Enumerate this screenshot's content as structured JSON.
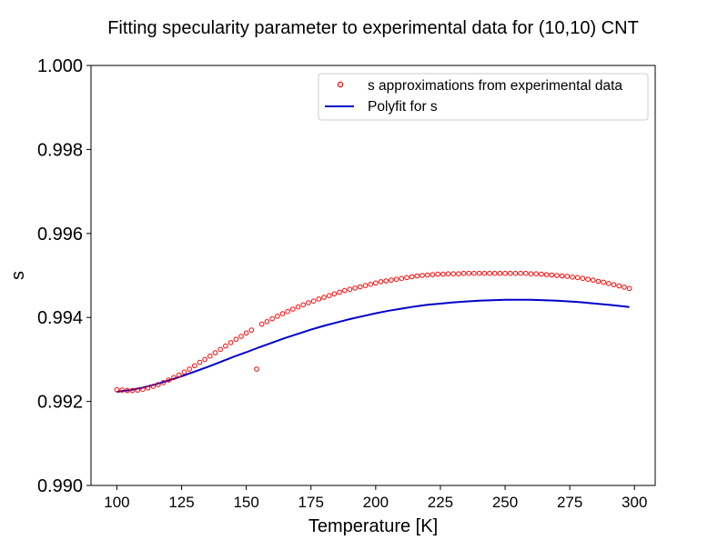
{
  "chart_data": {
    "type": "scatter",
    "title": "Fitting specularity parameter to experimental data for (10,10) CNT",
    "xlabel": "Temperature [K]",
    "ylabel": "s",
    "xlim": [
      90,
      308
    ],
    "ylim": [
      0.99,
      1.0
    ],
    "x_ticks": [
      100,
      125,
      150,
      175,
      200,
      225,
      250,
      275,
      300
    ],
    "x_tick_labels": [
      "100",
      "125",
      "150",
      "175",
      "200",
      "225",
      "250",
      "275",
      "300"
    ],
    "y_ticks": [
      0.99,
      0.992,
      0.994,
      0.996,
      0.998,
      1.0
    ],
    "y_tick_labels": [
      "0.990",
      "0.992",
      "0.994",
      "0.996",
      "0.998",
      "1.000"
    ],
    "grid": false,
    "legend_position": "top-right",
    "series": [
      {
        "name": "s approximations from experimental data",
        "kind": "scatter",
        "marker": "open-circle",
        "color": "#ff0000",
        "x": [
          100,
          102,
          104,
          106,
          108,
          110,
          112,
          114,
          116,
          118,
          120,
          122,
          124,
          126,
          128,
          130,
          132,
          134,
          136,
          138,
          140,
          142,
          144,
          146,
          148,
          150,
          152,
          154,
          156,
          158,
          160,
          162,
          164,
          166,
          168,
          170,
          172,
          174,
          176,
          178,
          180,
          182,
          184,
          186,
          188,
          190,
          192,
          194,
          196,
          198,
          200,
          202,
          204,
          206,
          208,
          210,
          212,
          214,
          216,
          218,
          220,
          222,
          224,
          226,
          228,
          230,
          232,
          234,
          236,
          238,
          240,
          242,
          244,
          246,
          248,
          250,
          252,
          254,
          256,
          258,
          260,
          262,
          264,
          266,
          268,
          270,
          272,
          274,
          276,
          278,
          280,
          282,
          284,
          286,
          288,
          290,
          292,
          294,
          296,
          298
        ],
        "y": [
          0.99228,
          0.99227,
          0.99226,
          0.99226,
          0.99227,
          0.99229,
          0.99232,
          0.99236,
          0.9924,
          0.99245,
          0.99251,
          0.99257,
          0.99263,
          0.9927,
          0.99277,
          0.99285,
          0.99293,
          0.993,
          0.99308,
          0.99316,
          0.99324,
          0.99332,
          0.9934,
          0.99348,
          0.99355,
          0.99363,
          0.9937,
          0.99277,
          0.99384,
          0.9939,
          0.99397,
          0.99403,
          0.99409,
          0.99414,
          0.9942,
          0.99425,
          0.9943,
          0.99435,
          0.99439,
          0.99444,
          0.99448,
          0.99452,
          0.99456,
          0.9946,
          0.99464,
          0.99467,
          0.9947,
          0.99473,
          0.99476,
          0.99479,
          0.99482,
          0.99485,
          0.99487,
          0.99489,
          0.99491,
          0.99493,
          0.99495,
          0.99497,
          0.99499,
          0.995,
          0.99501,
          0.99502,
          0.99503,
          0.99503,
          0.99504,
          0.99504,
          0.99504,
          0.99505,
          0.99505,
          0.99505,
          0.99505,
          0.99505,
          0.99505,
          0.99505,
          0.99505,
          0.99505,
          0.99505,
          0.99505,
          0.99505,
          0.99505,
          0.99504,
          0.99504,
          0.99503,
          0.99502,
          0.99501,
          0.995,
          0.99499,
          0.99498,
          0.99496,
          0.99495,
          0.99493,
          0.99491,
          0.99489,
          0.99486,
          0.99484,
          0.99481,
          0.99478,
          0.99475,
          0.99472,
          0.99469
        ]
      },
      {
        "name": "Polyfit for s",
        "kind": "line",
        "color": "#0000cc",
        "x": [
          100,
          105,
          110,
          115,
          120,
          125,
          130,
          135,
          140,
          145,
          150,
          155,
          160,
          165,
          170,
          175,
          180,
          185,
          190,
          195,
          200,
          205,
          210,
          215,
          220,
          225,
          230,
          235,
          240,
          245,
          250,
          255,
          260,
          265,
          270,
          275,
          280,
          285,
          290,
          295,
          298
        ],
        "y": [
          0.99223,
          0.99227,
          0.99233,
          0.99241,
          0.9925,
          0.9926,
          0.99271,
          0.99282,
          0.99294,
          0.99306,
          0.99317,
          0.99329,
          0.9934,
          0.99351,
          0.99361,
          0.99371,
          0.9938,
          0.99388,
          0.99396,
          0.99403,
          0.9941,
          0.99416,
          0.99421,
          0.99426,
          0.9943,
          0.99433,
          0.99436,
          0.99438,
          0.9944,
          0.99441,
          0.99442,
          0.99442,
          0.99442,
          0.99441,
          0.9944,
          0.99438,
          0.99436,
          0.99433,
          0.9943,
          0.99427,
          0.99425
        ]
      }
    ]
  }
}
